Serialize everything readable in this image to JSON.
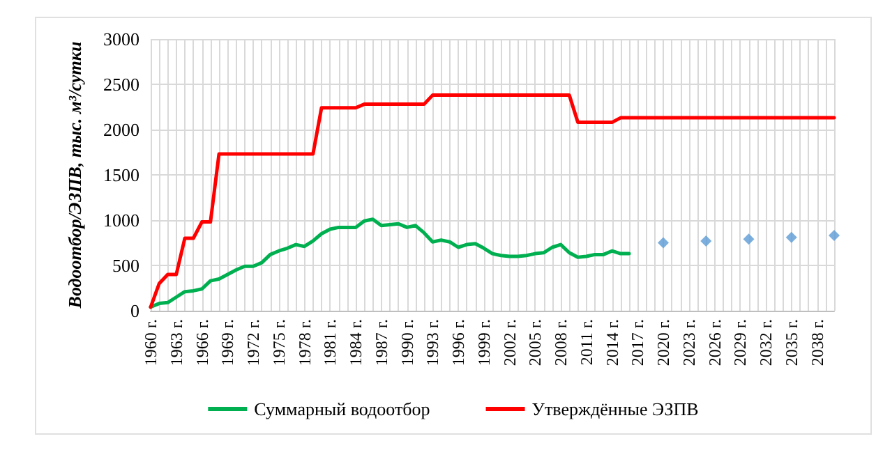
{
  "chart_data": {
    "type": "line",
    "ylabel": "Водоотбор/ЭЗПВ, тыс. м³/сутки",
    "categories": [
      "1960 г.",
      null,
      null,
      "1963 г.",
      null,
      null,
      "1966 г.",
      null,
      null,
      "1969 г.",
      null,
      null,
      "1972 г.",
      null,
      null,
      "1975 г.",
      null,
      null,
      "1978 г.",
      null,
      null,
      "1981 г.",
      null,
      null,
      "1984 г.",
      null,
      null,
      "1987 г.",
      null,
      null,
      "1990 г.",
      null,
      null,
      "1993 г.",
      null,
      null,
      "1996 г.",
      null,
      null,
      "1999 г.",
      null,
      null,
      "2002 г.",
      null,
      null,
      "2005 г.",
      null,
      null,
      "2008 г.",
      null,
      null,
      "2011 г.",
      null,
      null,
      "2014 г.",
      null,
      null,
      "2017 г.",
      null,
      null,
      "2020 г.",
      null,
      null,
      "2023 г.",
      null,
      null,
      "2026 г.",
      null,
      null,
      "2029 г.",
      null,
      null,
      "2032 г.",
      null,
      null,
      "2035 г.",
      null,
      null,
      "2038 г.",
      null,
      null
    ],
    "series": [
      {
        "name": "Суммарный водоотбор",
        "color": "#00b050",
        "values": [
          40,
          80,
          90,
          150,
          210,
          220,
          240,
          330,
          350,
          400,
          450,
          490,
          490,
          530,
          620,
          660,
          690,
          730,
          710,
          770,
          850,
          900,
          920,
          920,
          920,
          990,
          1010,
          940,
          950,
          960,
          920,
          940,
          860,
          760,
          780,
          760,
          700,
          730,
          740,
          690,
          630,
          610,
          600,
          600,
          610,
          630,
          640,
          700,
          730,
          640,
          590,
          600,
          620,
          620,
          660,
          630,
          630,
          null,
          null,
          null,
          null,
          null,
          null,
          null,
          null,
          null,
          null,
          null,
          null,
          null,
          null,
          null,
          null,
          null,
          null,
          null,
          null,
          null,
          null,
          null,
          null
        ]
      },
      {
        "name": "Утверждённые ЭЗПВ",
        "color": "#ff0000",
        "values": [
          40,
          300,
          400,
          400,
          800,
          800,
          980,
          980,
          1730,
          1730,
          1730,
          1730,
          1730,
          1730,
          1730,
          1730,
          1730,
          1730,
          1730,
          1730,
          2240,
          2240,
          2240,
          2240,
          2240,
          2280,
          2280,
          2280,
          2280,
          2280,
          2280,
          2280,
          2280,
          2380,
          2380,
          2380,
          2380,
          2380,
          2380,
          2380,
          2380,
          2380,
          2380,
          2380,
          2380,
          2380,
          2380,
          2380,
          2380,
          2380,
          2080,
          2080,
          2080,
          2080,
          2080,
          2130,
          2130,
          2130,
          2130,
          2130,
          2130,
          2130,
          2130,
          2130,
          2130,
          2130,
          2130,
          2130,
          2130,
          2130,
          2130,
          2130,
          2130,
          2130,
          2130,
          2130,
          2130,
          2130,
          2130,
          2130,
          2130
        ]
      },
      {
        "type": "scatter",
        "marker": "diamond",
        "color": "#5b9bd5",
        "values": [
          null,
          null,
          null,
          null,
          null,
          null,
          null,
          null,
          null,
          null,
          null,
          null,
          null,
          null,
          null,
          null,
          null,
          null,
          null,
          null,
          null,
          null,
          null,
          null,
          null,
          null,
          null,
          null,
          null,
          null,
          null,
          null,
          null,
          null,
          null,
          null,
          null,
          null,
          null,
          null,
          null,
          null,
          null,
          null,
          null,
          null,
          null,
          null,
          null,
          null,
          null,
          null,
          null,
          null,
          null,
          null,
          null,
          null,
          null,
          null,
          750,
          null,
          null,
          null,
          null,
          770,
          null,
          null,
          null,
          null,
          790,
          null,
          null,
          null,
          null,
          810,
          null,
          null,
          null,
          null,
          830
        ]
      }
    ],
    "ylim": [
      0,
      3000
    ],
    "yticks": [
      0,
      500,
      1000,
      1500,
      2000,
      2500,
      3000
    ],
    "grid": true,
    "legend": "bottom",
    "line_style": "solid"
  }
}
